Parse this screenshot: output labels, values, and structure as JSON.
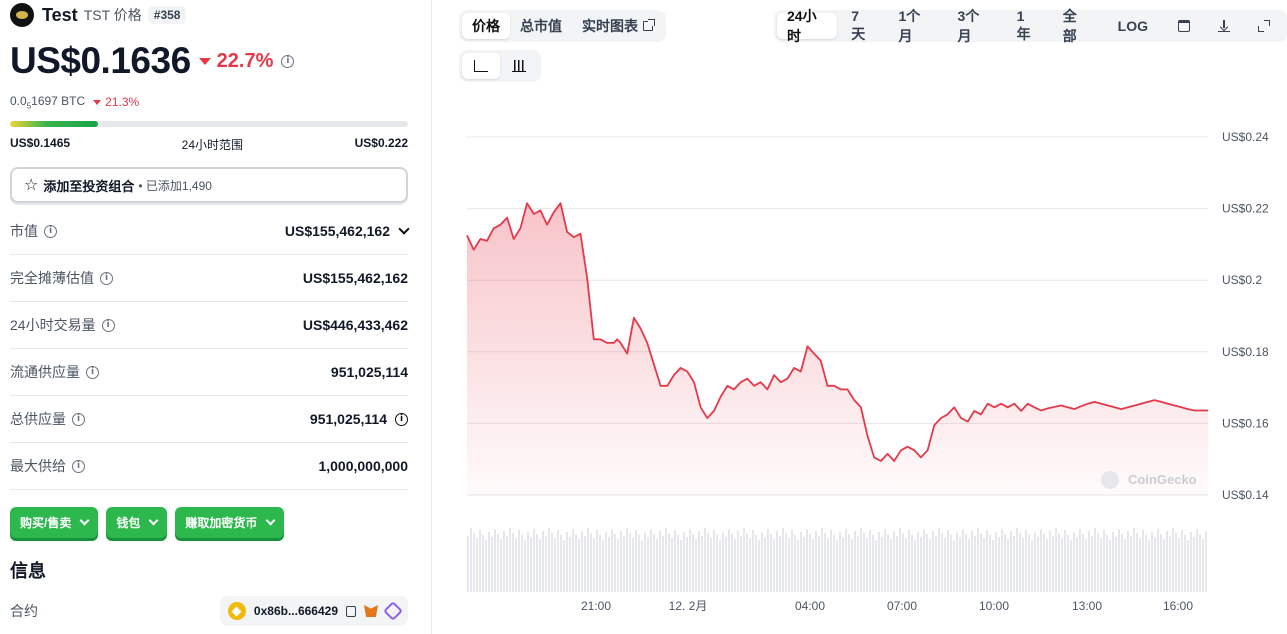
{
  "coin": {
    "name": "Test",
    "subtitle": "TST 价格",
    "rank": "#358",
    "price": "US$0.1636",
    "change_24h": "22.7%",
    "btc_prefix": "0.0",
    "btc_sub": "5",
    "btc_rest": "1697 BTC",
    "btc_change": "21.3%"
  },
  "range": {
    "low": "US$0.1465",
    "label": "24小时范围",
    "high": "US$0.222",
    "position_fraction": 0.22
  },
  "portfolio": {
    "label": "添加至投资组合",
    "added": "• 已添加1,490"
  },
  "stats": [
    {
      "label": "市值",
      "value": "US$155,462,162",
      "info": true,
      "trailing": "chevron"
    },
    {
      "label": "完全摊薄估值",
      "value": "US$155,462,162",
      "info": true,
      "trailing": ""
    },
    {
      "label": "24小时交易量",
      "value": "US$446,433,462",
      "info": true,
      "trailing": ""
    },
    {
      "label": "流通供应量",
      "value": "951,025,114",
      "info": true,
      "trailing": ""
    },
    {
      "label": "总供应量",
      "value": "951,025,114",
      "info": true,
      "trailing": "info"
    },
    {
      "label": "最大供给",
      "value": "1,000,000,000",
      "info": true,
      "trailing": ""
    }
  ],
  "actions": [
    "购买/售卖",
    "钱包",
    "赚取加密货币"
  ],
  "info_section": {
    "title": "信息",
    "contract_label": "合约",
    "contract_value": "0x86b...666429"
  },
  "chart_tabs": [
    "价格",
    "总市值",
    "实时图表"
  ],
  "range_tabs": [
    "24小时",
    "7天",
    "1个月",
    "3个月",
    "1年",
    "全部",
    "LOG"
  ],
  "colors": {
    "down_red": "#e5394a",
    "buy_green": "#2db84d",
    "line": "#e5394a"
  },
  "chart_data": {
    "type": "area",
    "title": "",
    "xlabel": "",
    "ylabel": "",
    "y_ticks": [
      "US$0.24",
      "US$0.22",
      "US$0.2",
      "US$0.18",
      "US$0.16",
      "US$0.14"
    ],
    "ylim": [
      0.14,
      0.24
    ],
    "x_ticks": [
      "21:00",
      "12. 2月",
      "04:00",
      "07:00",
      "10:00",
      "13:00",
      "16:00"
    ],
    "watermark": "CoinGecko",
    "series": [
      {
        "x_hours": [
          0.0,
          0.2,
          0.4,
          0.6,
          0.8,
          1.0,
          1.2,
          1.4,
          1.6,
          1.8,
          2.0,
          2.2,
          2.4,
          2.6,
          2.8,
          3.0,
          3.2,
          3.4,
          3.6,
          3.8,
          4.0,
          4.2,
          4.4,
          4.5,
          4.6,
          4.8,
          5.0,
          5.2,
          5.4,
          5.6,
          5.8,
          6.0,
          6.2,
          6.4,
          6.6,
          6.8,
          7.0,
          7.2,
          7.4,
          7.6,
          7.8,
          8.0,
          8.2,
          8.4,
          8.6,
          8.8,
          9.0,
          9.2,
          9.4,
          9.6,
          9.8,
          10.0,
          10.2,
          10.4,
          10.6,
          10.8,
          11.0,
          11.2,
          11.4,
          11.6,
          11.8,
          12.0,
          12.2,
          12.4,
          12.6,
          12.8,
          13.0,
          13.2,
          13.4,
          13.6,
          13.8,
          14.0,
          14.2,
          14.4,
          14.6,
          14.8,
          15.0,
          15.2,
          15.4,
          15.6,
          15.8,
          16.0,
          16.2,
          16.4,
          16.6,
          16.8,
          17.0,
          17.2,
          17.4,
          17.6,
          17.8,
          18.0,
          18.2,
          18.4,
          18.6,
          18.8,
          19.0,
          19.2,
          19.4,
          19.6,
          19.8,
          20.0,
          20.2,
          20.4,
          20.6,
          20.8,
          21.0,
          21.2,
          21.4,
          21.6,
          21.8,
          22.0,
          22.2
        ],
        "values": [
          0.2125,
          0.2085,
          0.2115,
          0.211,
          0.2145,
          0.2155,
          0.2175,
          0.2115,
          0.2145,
          0.2215,
          0.2185,
          0.2195,
          0.2155,
          0.219,
          0.2215,
          0.2135,
          0.212,
          0.213,
          0.2005,
          0.1835,
          0.1835,
          0.1825,
          0.1825,
          0.1835,
          0.1825,
          0.1795,
          0.1895,
          0.1865,
          0.1825,
          0.1765,
          0.1705,
          0.1705,
          0.1735,
          0.1755,
          0.1745,
          0.1715,
          0.1645,
          0.1615,
          0.1635,
          0.1675,
          0.1705,
          0.1695,
          0.1715,
          0.1725,
          0.1705,
          0.1715,
          0.1695,
          0.1735,
          0.1715,
          0.1725,
          0.1755,
          0.1745,
          0.1815,
          0.1795,
          0.1775,
          0.1705,
          0.1705,
          0.1695,
          0.1695,
          0.1665,
          0.1645,
          0.1565,
          0.1505,
          0.1495,
          0.1515,
          0.1495,
          0.1525,
          0.1535,
          0.1525,
          0.1505,
          0.1525,
          0.1595,
          0.1615,
          0.1625,
          0.1645,
          0.1615,
          0.1605,
          0.1635,
          0.1625,
          0.1655,
          0.1645,
          0.1655,
          0.1645,
          0.1655,
          0.1635,
          0.1655,
          0.1645,
          0.1636,
          0.1642,
          0.1646,
          0.165,
          0.1645,
          0.164,
          0.1648,
          0.1655,
          0.166,
          0.1655,
          0.165,
          0.1645,
          0.164,
          0.1645,
          0.165,
          0.1655,
          0.166,
          0.1665,
          0.166,
          0.1655,
          0.165,
          0.1645,
          0.164,
          0.1636,
          0.1636,
          0.1636
        ]
      }
    ]
  }
}
